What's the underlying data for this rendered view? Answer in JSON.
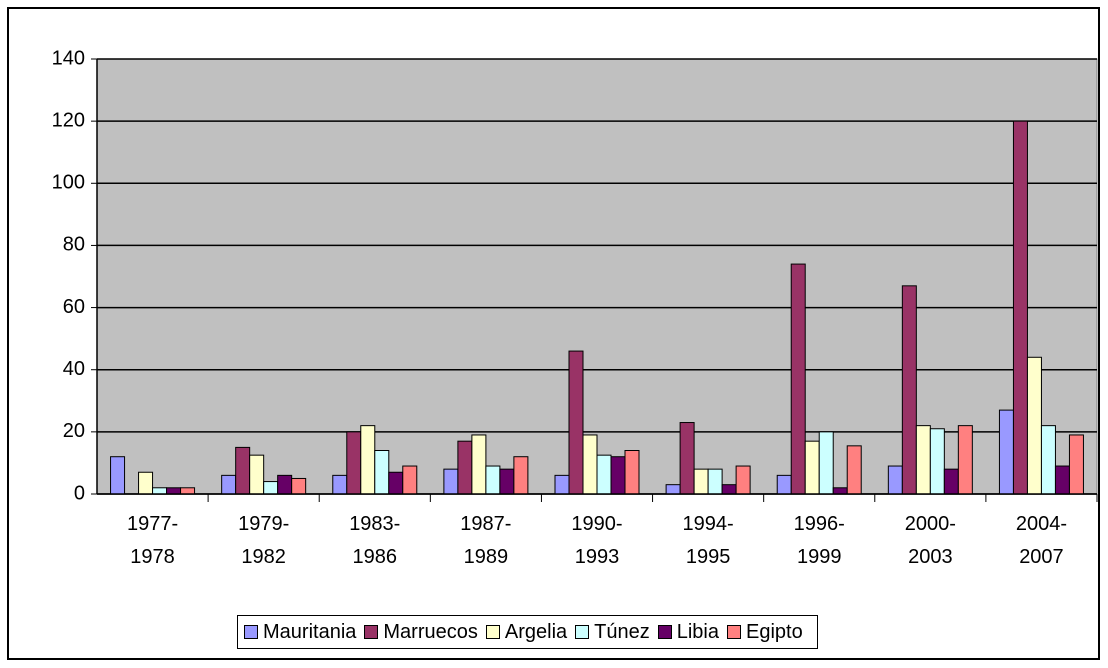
{
  "chart_data": {
    "type": "bar",
    "categories": [
      "1977-1978",
      "1979-1982",
      "1983-1986",
      "1987-1989",
      "1990-1993",
      "1994-1995",
      "1996-1999",
      "2000-2003",
      "2004-2007"
    ],
    "series": [
      {
        "name": "Mauritania",
        "color": "#9999ff",
        "values": [
          12,
          6,
          6,
          8,
          6,
          3,
          6,
          9,
          27
        ]
      },
      {
        "name": "Marruecos",
        "color": "#993366",
        "values": [
          0,
          15,
          20,
          17,
          46,
          23,
          74,
          67,
          120
        ]
      },
      {
        "name": "Argelia",
        "color": "#ffffcc",
        "values": [
          7,
          12.5,
          22,
          19,
          19,
          8,
          17,
          22,
          44
        ]
      },
      {
        "name": "Túnez",
        "color": "#ccffff",
        "values": [
          2,
          4,
          14,
          9,
          12.5,
          8,
          20,
          21,
          22
        ]
      },
      {
        "name": "Libia",
        "color": "#660066",
        "values": [
          2,
          6,
          7,
          8,
          12,
          3,
          2,
          8,
          9
        ]
      },
      {
        "name": "Egipto",
        "color": "#ff8080",
        "values": [
          2,
          5,
          9,
          12,
          14,
          9,
          15.5,
          22,
          19
        ]
      }
    ],
    "ylim": [
      0,
      140
    ],
    "yticks": [
      0,
      20,
      40,
      60,
      80,
      100,
      120,
      140
    ],
    "grid": true,
    "legend": "bottom"
  }
}
